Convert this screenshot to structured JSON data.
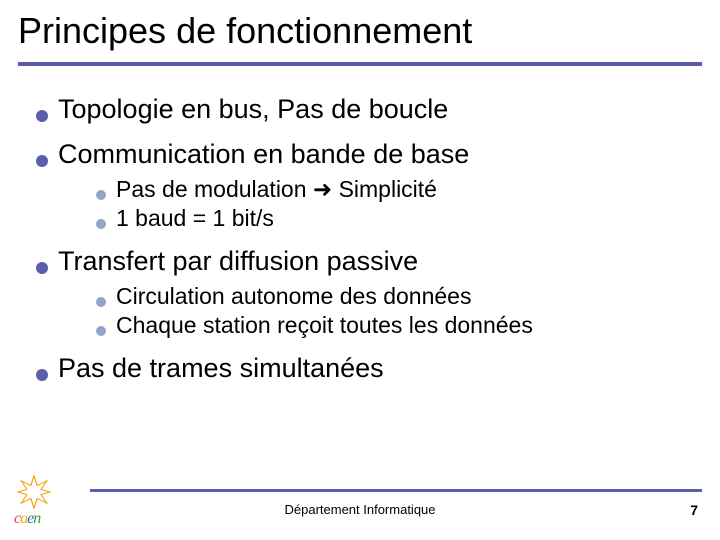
{
  "theme": {
    "accent": "#595ea8",
    "sub_bullet": "#91a4c9",
    "text": "#000000",
    "background": "#ffffff",
    "title_fontsize": 36,
    "lvl1_fontsize": 27,
    "lvl2_fontsize": 23,
    "footer_fontsize": 13,
    "rule_height": 4
  },
  "title": "Principes de fonctionnement",
  "bullets": [
    {
      "text": "Topologie en bus, Pas de boucle",
      "sub": []
    },
    {
      "text": "Communication en bande de base",
      "sub": [
        "Pas de modulation ➜ Simplicité",
        "1 baud = 1 bit/s"
      ]
    },
    {
      "text": "Transfert par diffusion passive",
      "sub": [
        "Circulation autonome des données",
        "Chaque station reçoit toutes les données"
      ]
    },
    {
      "text": "Pas de trames simultanées",
      "sub": []
    }
  ],
  "footer": {
    "department": "Département Informatique",
    "page": "7",
    "logo_text": "caen",
    "logo_colors": [
      "#e84a33",
      "#f3a917",
      "#3a62a8",
      "#3a9a3a"
    ]
  }
}
